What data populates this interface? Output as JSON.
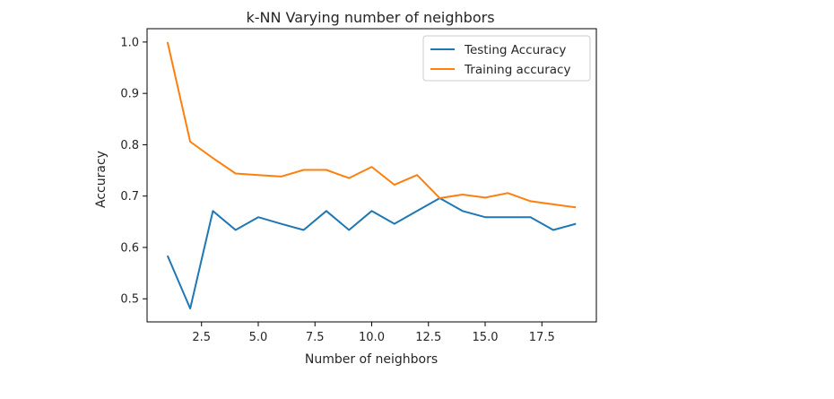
{
  "chart_data": {
    "type": "line",
    "title": "k-NN Varying number of neighbors",
    "xlabel": "Number of neighbors",
    "ylabel": "Accuracy",
    "xlim": [
      0.1,
      19.9
    ],
    "ylim": [
      0.455,
      1.026
    ],
    "x_ticks": [
      2.5,
      5.0,
      7.5,
      10.0,
      12.5,
      15.0,
      17.5
    ],
    "x_tick_labels": [
      "2.5",
      "5.0",
      "7.5",
      "10.0",
      "12.5",
      "15.0",
      "17.5"
    ],
    "y_ticks": [
      0.5,
      0.6,
      0.7,
      0.8,
      0.9,
      1.0
    ],
    "y_tick_labels": [
      "0.5",
      "0.6",
      "0.7",
      "0.8",
      "0.9",
      "1.0"
    ],
    "grid": false,
    "legend_position": "top-right",
    "x": [
      1,
      2,
      3,
      4,
      5,
      6,
      7,
      8,
      9,
      10,
      11,
      12,
      13,
      14,
      15,
      16,
      17,
      18,
      19
    ],
    "series": [
      {
        "name": "Testing Accuracy",
        "color": "#1f77b4",
        "values": [
          0.584,
          0.481,
          0.671,
          0.634,
          0.659,
          0.646,
          0.634,
          0.671,
          0.634,
          0.671,
          0.646,
          0.671,
          0.696,
          0.671,
          0.659,
          0.659,
          0.659,
          0.634,
          0.646
        ]
      },
      {
        "name": "Training accuracy",
        "color": "#ff7f0e",
        "values": [
          1.0,
          0.806,
          0.774,
          0.744,
          0.741,
          0.738,
          0.751,
          0.751,
          0.735,
          0.757,
          0.722,
          0.741,
          0.696,
          0.703,
          0.697,
          0.706,
          0.69,
          0.684,
          0.678
        ]
      }
    ]
  }
}
